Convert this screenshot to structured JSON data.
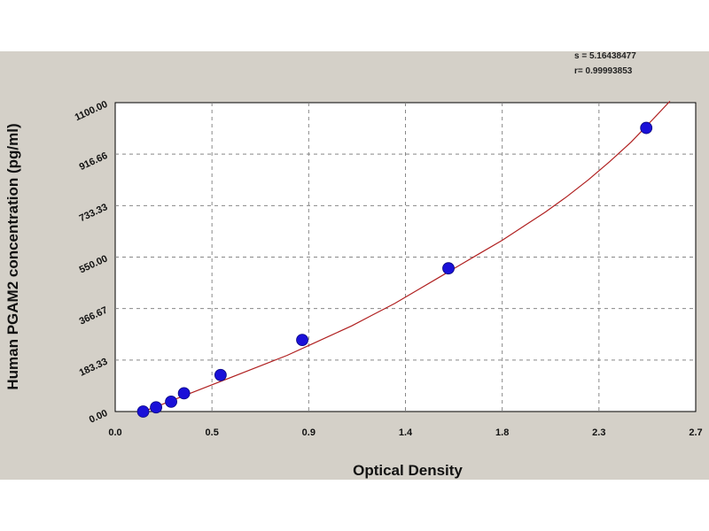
{
  "stats": {
    "line1": "s = 5.16438477",
    "line2": "r= 0.99993853"
  },
  "chart_data": {
    "type": "scatter",
    "xlabel": "Optical Density",
    "ylabel": "Human  PGAM2 concentration (pg/ml)",
    "xlim": [
      0.0,
      2.7
    ],
    "ylim": [
      0.0,
      1100.0
    ],
    "x_ticks": [
      "0.0",
      "0.5",
      "0.9",
      "1.4",
      "1.8",
      "2.3",
      "2.7"
    ],
    "x_tick_values": [
      0.0,
      0.45,
      0.9,
      1.35,
      1.8,
      2.25,
      2.7
    ],
    "y_ticks": [
      "0.00",
      "183.33",
      "366.67",
      "550.00",
      "733.33",
      "916.66",
      "1100.00"
    ],
    "y_tick_values": [
      0,
      183.33,
      366.67,
      550.0,
      733.33,
      916.66,
      1100.0
    ],
    "grid": true,
    "points": [
      {
        "x": 0.13,
        "y": 0
      },
      {
        "x": 0.19,
        "y": 15
      },
      {
        "x": 0.26,
        "y": 35
      },
      {
        "x": 0.32,
        "y": 65
      },
      {
        "x": 0.49,
        "y": 130
      },
      {
        "x": 0.87,
        "y": 255
      },
      {
        "x": 1.55,
        "y": 510
      },
      {
        "x": 2.47,
        "y": 1010
      }
    ],
    "curve": [
      [
        0.13,
        0
      ],
      [
        0.2,
        20
      ],
      [
        0.3,
        50
      ],
      [
        0.4,
        80
      ],
      [
        0.5,
        110
      ],
      [
        0.6,
        140
      ],
      [
        0.7,
        170
      ],
      [
        0.8,
        200
      ],
      [
        0.9,
        235
      ],
      [
        1.0,
        270
      ],
      [
        1.1,
        305
      ],
      [
        1.2,
        345
      ],
      [
        1.3,
        385
      ],
      [
        1.4,
        430
      ],
      [
        1.5,
        475
      ],
      [
        1.6,
        520
      ],
      [
        1.7,
        565
      ],
      [
        1.8,
        610
      ],
      [
        1.9,
        660
      ],
      [
        2.0,
        710
      ],
      [
        2.1,
        765
      ],
      [
        2.2,
        825
      ],
      [
        2.3,
        890
      ],
      [
        2.4,
        960
      ],
      [
        2.5,
        1040
      ],
      [
        2.58,
        1105
      ]
    ],
    "point_color": "#1a10d8",
    "curve_color": "#b02020"
  }
}
